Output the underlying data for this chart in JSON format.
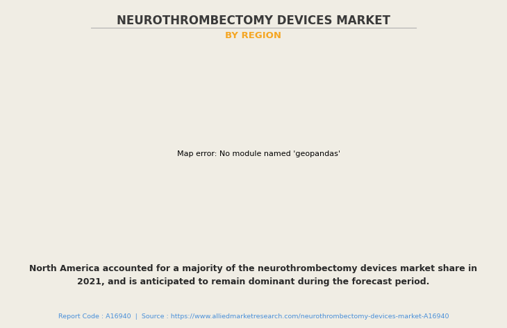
{
  "title": "NEUROTHROMBECTOMY DEVICES MARKET",
  "subtitle": "BY REGION",
  "title_color": "#3a3a3a",
  "subtitle_color": "#f5a623",
  "bg_color": "#f0ede4",
  "body_text_line1": "North America accounted for a majority of the neurothrombectomy devices market share in",
  "body_text_line2": "2021, and is anticipated to remain dominant during the forecast period.",
  "footer_text": "Report Code : A16940  |  Source : https://www.alliedmarketresearch.com/neurothrombectomy-devices-market-A16940",
  "footer_color": "#4a90d9",
  "body_text_color": "#2a2a2a",
  "divider_color": "#b0b0b0",
  "map_colors": {
    "north_america_green": "#82b882",
    "usa": "#dce8ec",
    "south_america": "#ccd98a",
    "europe": "#82b882",
    "africa": "#ccd98a",
    "asia_green": "#82b882",
    "middle_east": "#ccd98a",
    "australia": "#82b882",
    "border_color": "#7aadd0",
    "shadow_color": "#8a8a8a"
  }
}
